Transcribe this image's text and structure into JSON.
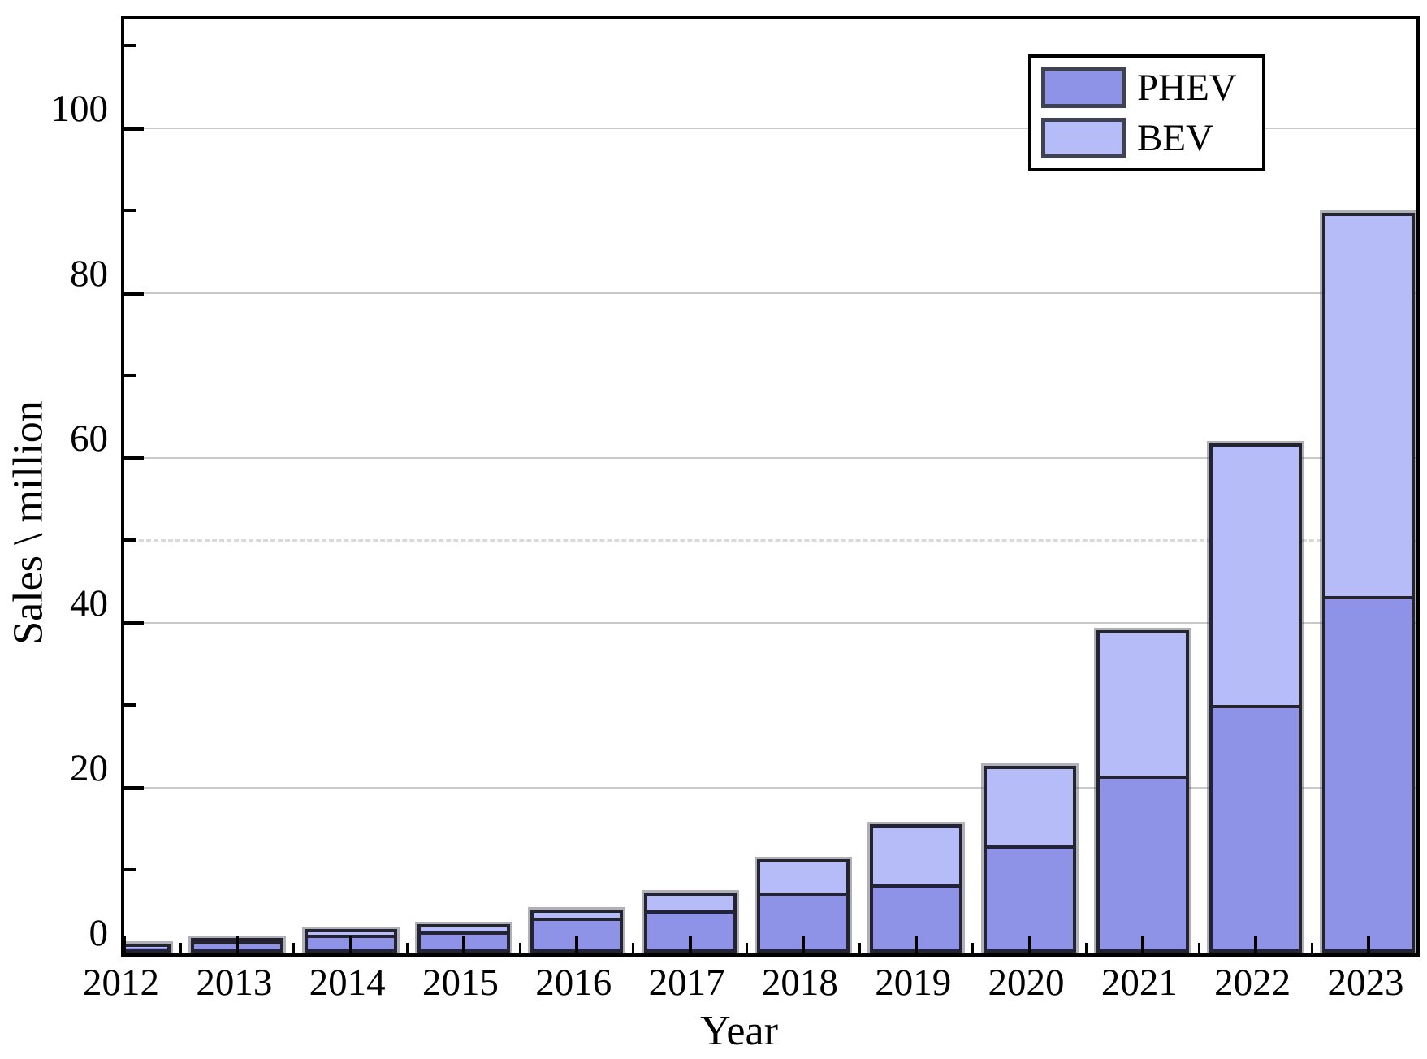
{
  "chart_data": {
    "type": "bar",
    "stacked": true,
    "title": "",
    "xlabel": "Year",
    "ylabel": "Sales \\ million",
    "categories": [
      "2012",
      "2013",
      "2014",
      "2015",
      "2016",
      "2017",
      "2018",
      "2019",
      "2020",
      "2021",
      "2022",
      "2023"
    ],
    "series": [
      {
        "name": "PHEV",
        "color": "#8e93e7",
        "values": [
          0.2,
          0.7,
          1.4,
          1.8,
          3.4,
          4.3,
          6.5,
          7.5,
          12.2,
          20.7,
          29.3,
          42.5
        ]
      },
      {
        "name": "BEV",
        "color": "#b5bcf8",
        "values": [
          0.1,
          0.3,
          0.7,
          0.9,
          1.0,
          2.2,
          4.0,
          7.3,
          9.7,
          17.6,
          31.7,
          46.5
        ]
      }
    ],
    "totals": [
      0.3,
      1.0,
      2.1,
      2.7,
      4.4,
      6.5,
      10.5,
      14.8,
      21.9,
      38.3,
      61.0,
      89.0
    ],
    "ylim": [
      0,
      113.2
    ],
    "yticks": [
      0,
      20,
      40,
      60,
      80,
      100
    ],
    "ytick_labels": [
      "0",
      "20",
      "40",
      "60",
      "80",
      "100"
    ],
    "yminorticks": [
      10,
      30,
      50,
      70,
      90,
      110
    ],
    "dashed_minor_gridlines": [
      50
    ],
    "grid": "solid light grey at major ticks, dashed light grey at 50",
    "legend_position": "top-right",
    "legend_order": [
      "PHEV",
      "BEV"
    ]
  },
  "colors": {
    "phev_fill": "#8e93e7",
    "bev_fill": "#b5bcf8",
    "bar_border": "#23242f",
    "bar_shadow": "#4d5062",
    "gridline": "#c9c9c9",
    "dashed_gridline": "#d9d9d9",
    "axis_frame": "#000000",
    "background": "#ffffff"
  }
}
